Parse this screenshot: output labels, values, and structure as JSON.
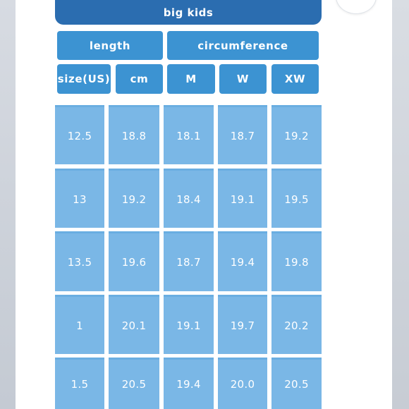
{
  "table": {
    "title": "big kids",
    "group_headers": [
      "length",
      "circumference"
    ],
    "column_headers": [
      "size(US)",
      "cm",
      "M",
      "W",
      "XW"
    ],
    "rows": [
      [
        "12.5",
        "18.8",
        "18.1",
        "18.7",
        "19.2"
      ],
      [
        "13",
        "19.2",
        "18.4",
        "19.1",
        "19.5"
      ],
      [
        "13.5",
        "19.6",
        "18.7",
        "19.4",
        "19.8"
      ],
      [
        "1",
        "20.1",
        "19.1",
        "19.7",
        "20.2"
      ],
      [
        "1.5",
        "20.5",
        "19.4",
        "20.0",
        "20.5"
      ]
    ]
  },
  "colors": {
    "title_bar": "#2b6db0",
    "header_cell": "#3c93d2",
    "data_cell": "#7ab7e6",
    "text": "#ffffff"
  }
}
